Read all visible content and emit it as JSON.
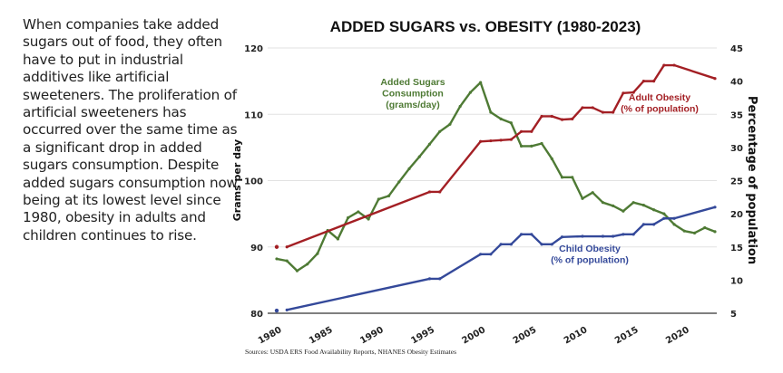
{
  "blurb": "When companies take added sugars out of food, they often have to put in industrial additives like artificial sweeteners. The proliferation of artificial sweeteners has occurred over the same time as a significant drop in added sugars consumption. Despite added sugars consumption now being at its lowest level since 1980, obesity in adults and children continues to rise.",
  "source": "Sources: USDA ERS Food Availability Reports, NHANES Obesity Estimates",
  "colors": {
    "sugar": "#4e7a34",
    "adult": "#a31f24",
    "child": "#34499a"
  },
  "chart_data": {
    "type": "line",
    "title": "ADDED SUGARS vs. OBESITY (1980-2023)",
    "xlabel": "",
    "ylabel": "Grams per day",
    "y2label": "Percentage of population",
    "xlim": [
      1980,
      2023
    ],
    "ylim": [
      80,
      120
    ],
    "y2lim": [
      5,
      45
    ],
    "xticks": [
      "1980",
      "1985",
      "1990",
      "1995",
      "2000",
      "2005",
      "2010",
      "2015",
      "2020"
    ],
    "yticks": [
      "80",
      "90",
      "100",
      "110",
      "120"
    ],
    "y2ticks": [
      "5",
      "10",
      "15",
      "20",
      "25",
      "30",
      "35",
      "40",
      "45"
    ],
    "grid": true,
    "series": [
      {
        "name": "Added Sugars Consumption (grams/day)",
        "label_lines": [
          "Added Sugars",
          "Consumption",
          "(grams/day)"
        ],
        "axis": "left",
        "color_key": "sugar",
        "x": [
          1980,
          1981,
          1982,
          1983,
          1984,
          1985,
          1986,
          1987,
          1988,
          1989,
          1990,
          1991,
          1992,
          1993,
          1994,
          1995,
          1996,
          1997,
          1998,
          1999,
          2000,
          2001,
          2002,
          2003,
          2004,
          2005,
          2006,
          2007,
          2008,
          2009,
          2010,
          2011,
          2012,
          2013,
          2014,
          2015,
          2016,
          2017,
          2018,
          2019,
          2020,
          2021,
          2022,
          2023
        ],
        "values": [
          88.2,
          87.9,
          86.4,
          87.4,
          89.0,
          92.5,
          91.2,
          94.4,
          95.3,
          94.2,
          97.2,
          97.7,
          99.8,
          101.8,
          103.6,
          105.5,
          107.4,
          108.5,
          111.2,
          113.3,
          114.8,
          110.3,
          109.3,
          108.7,
          105.2,
          105.2,
          105.6,
          103.3,
          100.5,
          100.5,
          97.3,
          98.2,
          96.7,
          96.2,
          95.4,
          96.7,
          96.3,
          95.6,
          95.0,
          93.4,
          92.4,
          92.1,
          92.9,
          92.3
        ]
      },
      {
        "name": "Adult Obesity (% of population)",
        "label_lines": [
          "Adult Obesity",
          "(% of population)"
        ],
        "axis": "right",
        "color_key": "adult",
        "x": [
          1980,
          1981,
          1995,
          1996,
          2000,
          2001,
          2002,
          2003,
          2004,
          2005,
          2006,
          2007,
          2008,
          2009,
          2010,
          2011,
          2012,
          2013,
          2014,
          2015,
          2016,
          2017,
          2018,
          2019,
          2023
        ],
        "values": [
          15.0,
          15.0,
          23.3,
          23.3,
          30.9,
          31.0,
          31.1,
          31.2,
          32.4,
          32.4,
          34.7,
          34.7,
          34.2,
          34.3,
          36.0,
          36.0,
          35.3,
          35.3,
          38.2,
          38.3,
          40.0,
          40.0,
          42.4,
          42.4,
          40.4
        ]
      },
      {
        "name": "Child Obesity (% of population)",
        "label_lines": [
          "Child Obesity",
          "(% of population)"
        ],
        "axis": "right",
        "color_key": "child",
        "x": [
          1980,
          1981,
          1995,
          1996,
          2000,
          2001,
          2002,
          2003,
          2004,
          2005,
          2006,
          2007,
          2008,
          2010,
          2012,
          2013,
          2014,
          2015,
          2016,
          2017,
          2018,
          2019,
          2023
        ],
        "values": [
          5.4,
          5.5,
          10.2,
          10.2,
          13.9,
          13.9,
          15.4,
          15.4,
          16.9,
          16.9,
          15.4,
          15.4,
          16.5,
          16.6,
          16.6,
          16.6,
          16.9,
          16.9,
          18.4,
          18.4,
          19.3,
          19.3,
          21.0
        ]
      }
    ]
  }
}
